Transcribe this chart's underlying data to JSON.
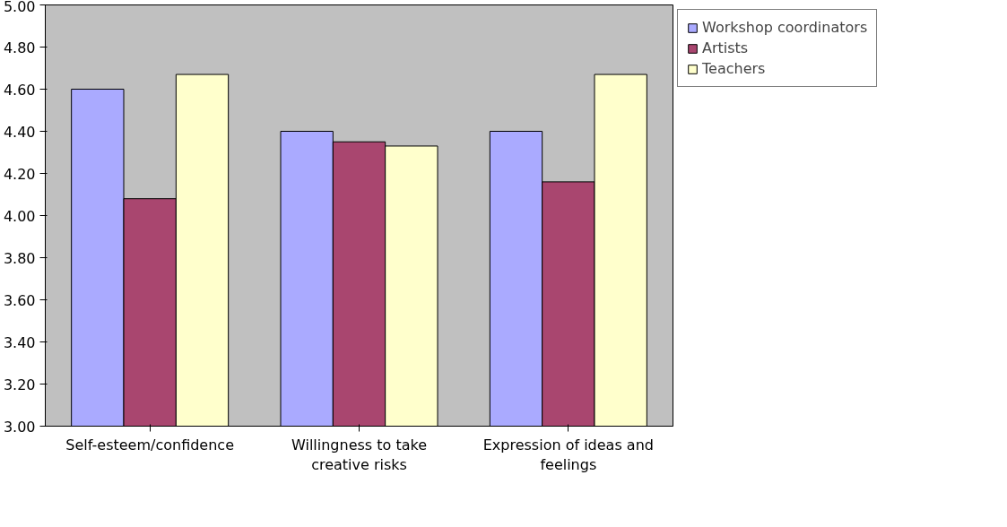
{
  "chart_data": {
    "type": "bar",
    "categories": [
      "Self-esteem/confidence",
      "Willingness to take creative risks",
      "Expression of ideas and feelings"
    ],
    "series": [
      {
        "name": "Workshop coordinators",
        "color": "#aaaaff",
        "values": [
          4.6,
          4.4,
          4.4
        ]
      },
      {
        "name": "Artists",
        "color": "#a9466f",
        "values": [
          4.08,
          4.35,
          4.16
        ]
      },
      {
        "name": "Teachers",
        "color": "#ffffcc",
        "values": [
          4.67,
          4.33,
          4.67
        ]
      }
    ],
    "ylim": [
      3,
      5
    ],
    "yticks": [
      {
        "value": 3,
        "label": "3.00"
      },
      {
        "value": 3.2,
        "label": "3.20"
      },
      {
        "value": 3.4,
        "label": "3.40"
      },
      {
        "value": 3.6,
        "label": "3.60"
      },
      {
        "value": 3.8,
        "label": "3.80"
      },
      {
        "value": 4,
        "label": "4.00"
      },
      {
        "value": 4.2,
        "label": "4.20"
      },
      {
        "value": 4.4,
        "label": "4.40"
      },
      {
        "value": 4.6,
        "label": "4.60"
      },
      {
        "value": 4.8,
        "label": "4.80"
      },
      {
        "value": 5,
        "label": "5.00"
      }
    ],
    "grid": false,
    "legend": "top right"
  }
}
